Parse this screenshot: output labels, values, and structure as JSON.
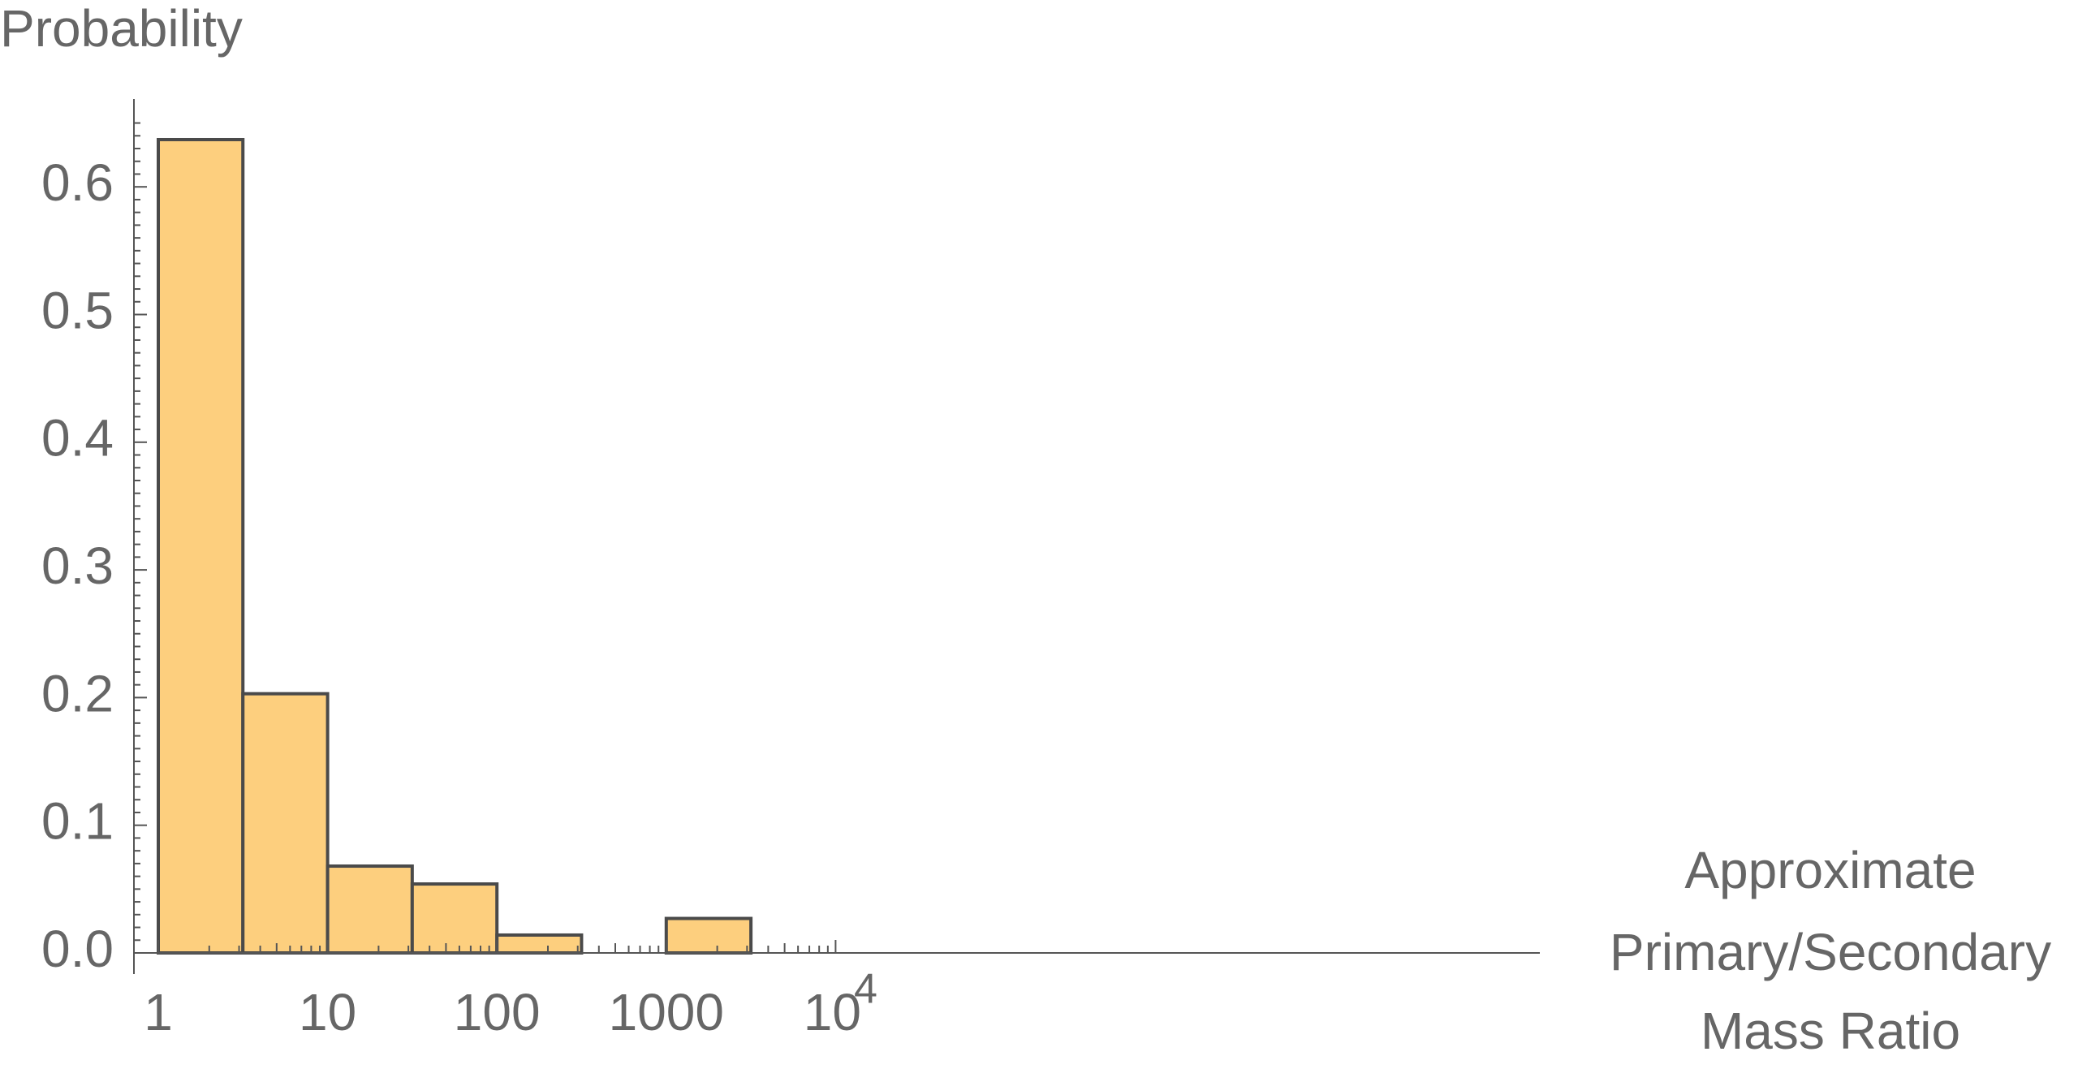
{
  "chart_data": {
    "type": "bar",
    "title": "",
    "ylabel": "Probability",
    "xlabel_lines": [
      "Approximate",
      "Primary/Secondary",
      "Mass Ratio"
    ],
    "x_scale": "log10",
    "xlim": [
      1,
      10000
    ],
    "ylim": [
      0,
      0.66
    ],
    "bar_fill": "#fdcf7e",
    "bar_stroke": "#4a4a4a",
    "axis_color": "#555555",
    "text_color": "#666666",
    "bins": [
      {
        "from": 1,
        "to": 3.16,
        "value": 0.637
      },
      {
        "from": 3.16,
        "to": 10,
        "value": 0.203
      },
      {
        "from": 10,
        "to": 31.6,
        "value": 0.068
      },
      {
        "from": 31.6,
        "to": 100,
        "value": 0.054
      },
      {
        "from": 100,
        "to": 316,
        "value": 0.014
      },
      {
        "from": 316,
        "to": 1000,
        "value": 0
      },
      {
        "from": 1000,
        "to": 3162,
        "value": 0.027
      }
    ],
    "y_ticks": [
      {
        "value": 0.0,
        "label": "0.0"
      },
      {
        "value": 0.1,
        "label": "0.1"
      },
      {
        "value": 0.2,
        "label": "0.2"
      },
      {
        "value": 0.3,
        "label": "0.3"
      },
      {
        "value": 0.4,
        "label": "0.4"
      },
      {
        "value": 0.5,
        "label": "0.5"
      },
      {
        "value": 0.6,
        "label": "0.6"
      }
    ],
    "x_ticks": [
      {
        "value": 1,
        "label": "1"
      },
      {
        "value": 10,
        "label": "10"
      },
      {
        "value": 100,
        "label": "100"
      },
      {
        "value": 1000,
        "label": "1000"
      },
      {
        "value": 10000,
        "base": "10",
        "exponent": "4"
      }
    ],
    "grid": false,
    "legend": "none"
  }
}
